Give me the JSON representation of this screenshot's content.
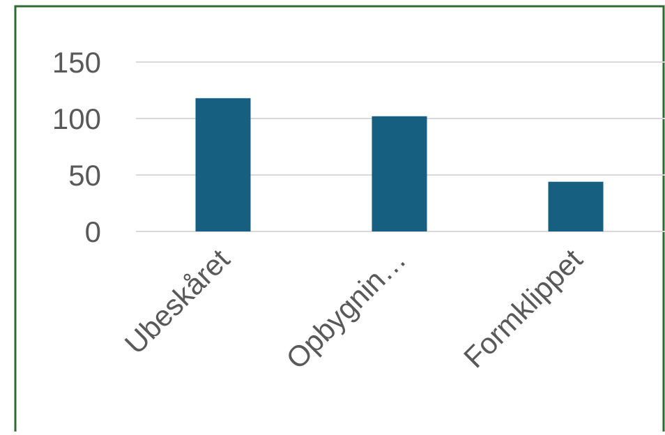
{
  "chart_data": {
    "type": "bar",
    "categories": [
      "Ubeskåret",
      "Opbygnin…",
      "Formklippet"
    ],
    "values": [
      118,
      102,
      44
    ],
    "ylim": [
      0,
      150
    ],
    "yticks": [
      0,
      50,
      100,
      150
    ],
    "title": "",
    "xlabel": "",
    "ylabel": "",
    "grid": true,
    "legend": "none",
    "colors": {
      "bar": "#175f80",
      "gridline": "#d9d9d9",
      "frame": "#2e6b2e",
      "tick_text": "#595959"
    }
  }
}
